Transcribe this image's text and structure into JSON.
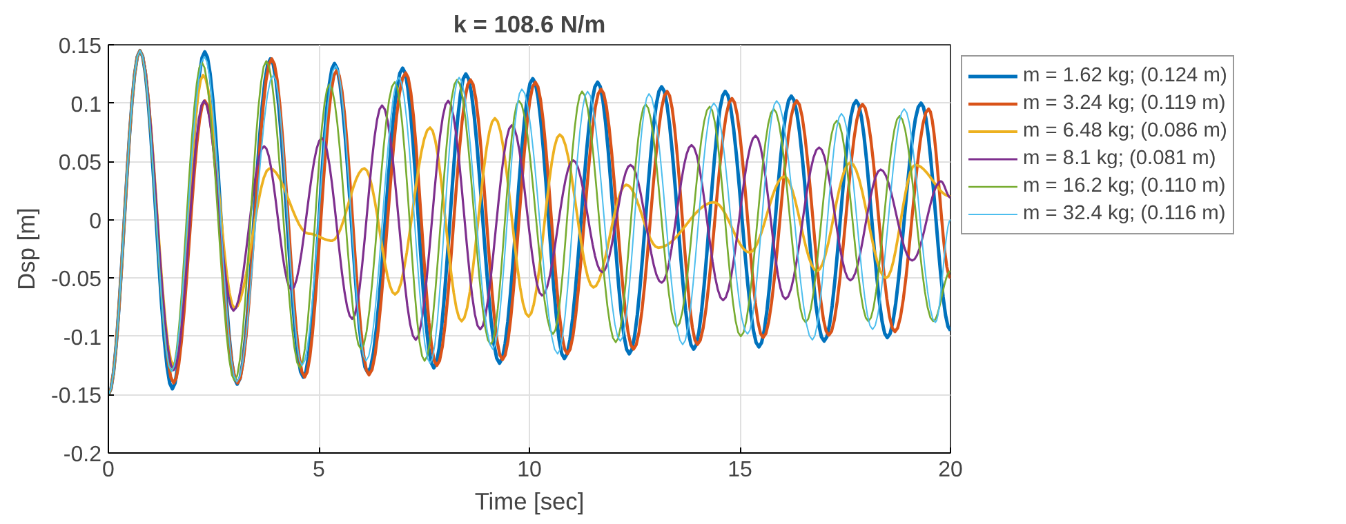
{
  "chart_data": {
    "type": "line",
    "title": "k = 108.6 N/m",
    "xlabel": "Time [sec]",
    "ylabel": "Dsp [m]",
    "xlim": [
      0,
      20
    ],
    "xticks": [
      0,
      5,
      10,
      15,
      20
    ],
    "ylim": [
      -0.2,
      0.15
    ],
    "yticks": [
      -0.2,
      -0.15,
      -0.1,
      -0.05,
      0,
      0.05,
      0.1,
      0.15
    ],
    "grid": true,
    "legend": "right",
    "marker": "none",
    "line_style": "solid",
    "series": [
      {
        "name": "m = 1.62 kg; (0.124 m)",
        "color": "#0072bd",
        "x": [
          0,
          0.75,
          1.52,
          2.29,
          3.06,
          3.85,
          4.63,
          5.37,
          6.16,
          6.99,
          7.73,
          8.49,
          9.29,
          10.08,
          10.83,
          11.62,
          12.37,
          13.14,
          13.9,
          14.65,
          15.45,
          16.22,
          17.0,
          17.76,
          18.5,
          19.3,
          20
        ],
        "values": [
          -0.15,
          0.145,
          -0.145,
          0.144,
          -0.141,
          0.138,
          -0.135,
          0.134,
          -0.131,
          0.13,
          -0.127,
          0.125,
          -0.123,
          0.121,
          -0.119,
          0.118,
          -0.115,
          0.114,
          -0.111,
          0.11,
          -0.109,
          0.106,
          -0.104,
          0.102,
          -0.101,
          0.1,
          -0.095
        ]
      },
      {
        "name": "m = 3.24 kg; (0.119 m)",
        "color": "#d95319",
        "x": [
          0,
          0.75,
          1.55,
          2.29,
          3.07,
          3.88,
          4.66,
          5.42,
          6.19,
          7.06,
          7.8,
          8.6,
          9.36,
          10.14,
          10.9,
          11.7,
          12.47,
          13.27,
          13.99,
          14.81,
          15.55,
          16.35,
          17.11,
          17.91,
          18.68,
          19.48,
          20
        ],
        "values": [
          -0.15,
          0.145,
          -0.14,
          0.102,
          -0.14,
          0.138,
          -0.135,
          0.128,
          -0.133,
          0.126,
          -0.125,
          0.12,
          -0.12,
          0.118,
          -0.115,
          0.112,
          -0.111,
          0.11,
          -0.107,
          0.104,
          -0.101,
          0.102,
          -0.099,
          0.099,
          -0.096,
          0.095,
          -0.05
        ]
      },
      {
        "name": "m = 6.48 kg; (0.086 m)",
        "color": "#edb120",
        "x": [
          0,
          0.75,
          1.55,
          2.25,
          3.0,
          3.83,
          4.76,
          5.31,
          6.08,
          6.81,
          7.64,
          8.39,
          9.18,
          9.98,
          10.72,
          11.52,
          12.3,
          13.06,
          14.38,
          15.23,
          16.05,
          16.83,
          17.62,
          18.47,
          19.16,
          20
        ],
        "values": [
          -0.15,
          0.145,
          -0.125,
          0.124,
          -0.076,
          0.044,
          -0.012,
          -0.018,
          0.044,
          -0.064,
          0.079,
          -0.087,
          0.087,
          -0.083,
          0.073,
          -0.058,
          0.03,
          -0.024,
          0.015,
          -0.028,
          0.037,
          -0.044,
          0.049,
          -0.05,
          0.047,
          0.02
        ]
      },
      {
        "name": "m = 8.1 kg; (0.081 m)",
        "color": "#7e2f8e",
        "x": [
          0,
          0.75,
          1.55,
          2.27,
          2.97,
          3.7,
          4.35,
          5.07,
          5.79,
          6.5,
          7.3,
          8.07,
          8.83,
          9.58,
          10.3,
          11.04,
          11.73,
          12.4,
          13.14,
          13.85,
          14.6,
          15.37,
          16.08,
          16.88,
          17.62,
          18.34,
          19.09,
          19.77,
          20
        ],
        "values": [
          -0.15,
          0.145,
          -0.129,
          0.102,
          -0.078,
          0.063,
          -0.06,
          0.07,
          -0.085,
          0.098,
          -0.103,
          0.102,
          -0.094,
          0.081,
          -0.065,
          0.051,
          -0.045,
          0.047,
          -0.054,
          0.064,
          -0.069,
          0.072,
          -0.068,
          0.062,
          -0.052,
          0.043,
          -0.035,
          0.033,
          0.019
        ]
      },
      {
        "name": "m = 16.2 kg; (0.110 m)",
        "color": "#77ac30",
        "x": [
          0,
          0.75,
          1.5,
          2.22,
          3.0,
          3.75,
          4.55,
          5.25,
          6.0,
          6.8,
          7.51,
          8.28,
          9.08,
          9.75,
          10.56,
          11.25,
          12.05,
          12.76,
          13.5,
          14.28,
          15.02,
          15.8,
          16.56,
          17.3,
          18.05,
          18.79,
          19.59,
          20
        ],
        "values": [
          -0.15,
          0.145,
          -0.13,
          0.135,
          -0.138,
          0.136,
          -0.127,
          0.116,
          -0.111,
          0.118,
          -0.121,
          0.12,
          -0.107,
          0.102,
          -0.098,
          0.11,
          -0.105,
          0.099,
          -0.092,
          0.097,
          -0.1,
          0.095,
          -0.088,
          0.085,
          -0.087,
          0.089,
          -0.087,
          -0.044
        ]
      },
      {
        "name": "m = 32.4 kg; (0.116 m)",
        "color": "#4dbeee",
        "x": [
          0,
          0.75,
          1.5,
          2.28,
          3.05,
          3.92,
          4.6,
          5.4,
          6.12,
          6.9,
          7.64,
          8.33,
          9.13,
          9.82,
          10.67,
          11.38,
          12.16,
          12.84,
          13.64,
          14.38,
          15.18,
          15.87,
          16.72,
          17.41,
          18.15,
          18.9,
          19.64,
          20
        ],
        "values": [
          -0.15,
          0.145,
          -0.13,
          0.14,
          -0.139,
          0.124,
          -0.125,
          0.132,
          -0.121,
          0.122,
          -0.123,
          0.122,
          -0.111,
          0.112,
          -0.115,
          0.11,
          -0.104,
          0.108,
          -0.107,
          0.1,
          -0.098,
          0.102,
          -0.103,
          0.091,
          -0.094,
          0.095,
          -0.088,
          0
        ]
      }
    ]
  }
}
